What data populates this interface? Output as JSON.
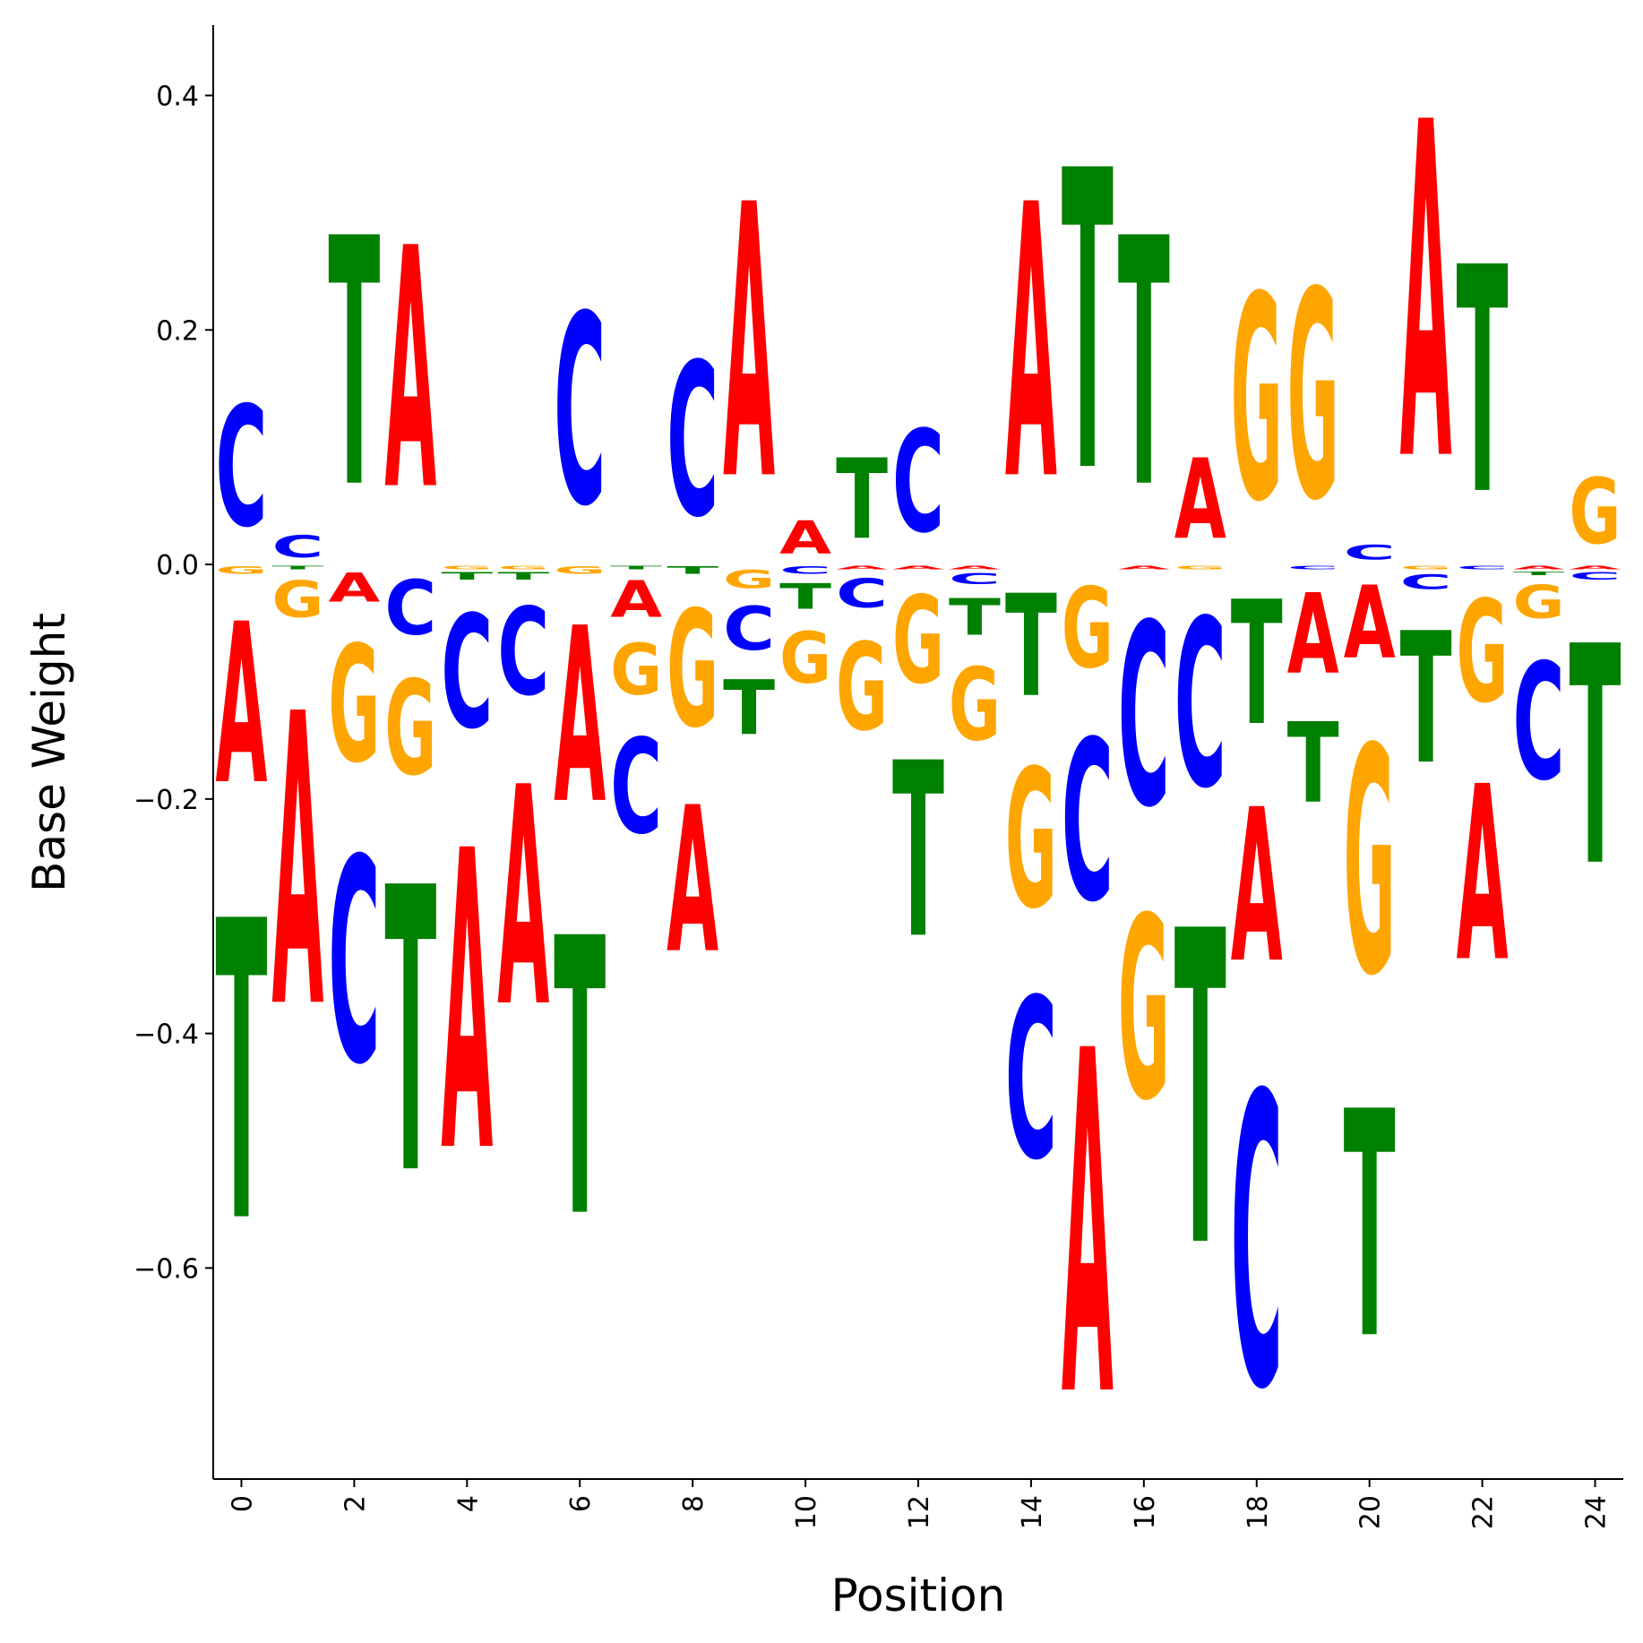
{
  "chart_data": {
    "type": "sequence-logo",
    "xlabel": "Position",
    "ylabel": "Base Weight",
    "xlim": [
      -0.5,
      24.5
    ],
    "ylim": [
      -0.78,
      0.46
    ],
    "xticks": [
      0,
      2,
      4,
      6,
      8,
      10,
      12,
      14,
      16,
      18,
      20,
      22,
      24
    ],
    "yticks": [
      -0.6,
      -0.4,
      -0.2,
      0.0,
      0.2,
      0.4
    ],
    "ytick_labels": [
      "−0.6",
      "−0.4",
      "−0.2",
      "0.0",
      "0.2",
      "0.4"
    ],
    "grid": false,
    "colors": {
      "A": "#ff0000",
      "C": "#0000ff",
      "G": "#ffa500",
      "T": "#008000"
    },
    "positions": [
      {
        "pos": 0,
        "weights": {
          "A": -0.22,
          "C": 0.165,
          "G": -0.01,
          "T": -0.41
        }
      },
      {
        "pos": 1,
        "weights": {
          "A": -0.4,
          "C": 0.03,
          "G": -0.05,
          "T": -0.005
        }
      },
      {
        "pos": 2,
        "weights": {
          "A": -0.04,
          "C": -0.28,
          "G": -0.16,
          "T": 0.34
        }
      },
      {
        "pos": 3,
        "weights": {
          "A": 0.33,
          "C": -0.075,
          "G": -0.13,
          "T": -0.39
        }
      },
      {
        "pos": 4,
        "weights": {
          "A": -0.41,
          "C": -0.155,
          "G": -0.005,
          "T": -0.01
        }
      },
      {
        "pos": 5,
        "weights": {
          "A": -0.3,
          "C": -0.12,
          "G": -0.005,
          "T": -0.01
        }
      },
      {
        "pos": 6,
        "weights": {
          "A": -0.24,
          "C": 0.26,
          "G": -0.01,
          "T": -0.38
        }
      },
      {
        "pos": 7,
        "weights": {
          "A": -0.05,
          "C": -0.13,
          "G": -0.07,
          "T": -0.005
        }
      },
      {
        "pos": 8,
        "weights": {
          "A": -0.2,
          "C": 0.21,
          "G": -0.16,
          "T": -0.01
        }
      },
      {
        "pos": 9,
        "weights": {
          "A": 0.375,
          "C": -0.06,
          "G": -0.025,
          "T": -0.075
        }
      },
      {
        "pos": 10,
        "weights": {
          "A": 0.045,
          "C": -0.01,
          "G": -0.07,
          "T": -0.035
        }
      },
      {
        "pos": 11,
        "weights": {
          "A": -0.005,
          "C": -0.04,
          "G": -0.12,
          "T": 0.11
        }
      },
      {
        "pos": 12,
        "weights": {
          "A": -0.005,
          "C": 0.14,
          "G": -0.12,
          "T": -0.24
        }
      },
      {
        "pos": 13,
        "weights": {
          "A": -0.005,
          "C": -0.015,
          "G": -0.1,
          "T": -0.05
        }
      },
      {
        "pos": 14,
        "weights": {
          "A": 0.375,
          "C": -0.22,
          "G": -0.19,
          "T": -0.14
        }
      },
      {
        "pos": 15,
        "weights": {
          "A": -0.47,
          "C": -0.22,
          "G": -0.11,
          "T": 0.41
        }
      },
      {
        "pos": 16,
        "weights": {
          "A": -0.005,
          "C": -0.25,
          "G": -0.25,
          "T": 0.34
        }
      },
      {
        "pos": 17,
        "weights": {
          "A": 0.11,
          "C": -0.23,
          "G": -0.005,
          "T": -0.43
        }
      },
      {
        "pos": 18,
        "weights": {
          "A": -0.21,
          "C": -0.4,
          "G": 0.28,
          "T": -0.17
        }
      },
      {
        "pos": 19,
        "weights": {
          "A": -0.11,
          "C": -0.005,
          "G": 0.285,
          "T": -0.11
        }
      },
      {
        "pos": 20,
        "weights": {
          "A": -0.1,
          "C": 0.02,
          "G": -0.31,
          "T": -0.31
        }
      },
      {
        "pos": 21,
        "weights": {
          "A": 0.46,
          "C": -0.02,
          "G": -0.005,
          "T": -0.18
        }
      },
      {
        "pos": 22,
        "weights": {
          "A": -0.24,
          "C": -0.005,
          "G": -0.14,
          "T": 0.31
        }
      },
      {
        "pos": 23,
        "weights": {
          "A": -0.005,
          "C": -0.16,
          "G": -0.045,
          "T": -0.005
        }
      },
      {
        "pos": 24,
        "weights": {
          "A": -0.005,
          "C": -0.01,
          "G": 0.09,
          "T": -0.3
        }
      }
    ]
  }
}
